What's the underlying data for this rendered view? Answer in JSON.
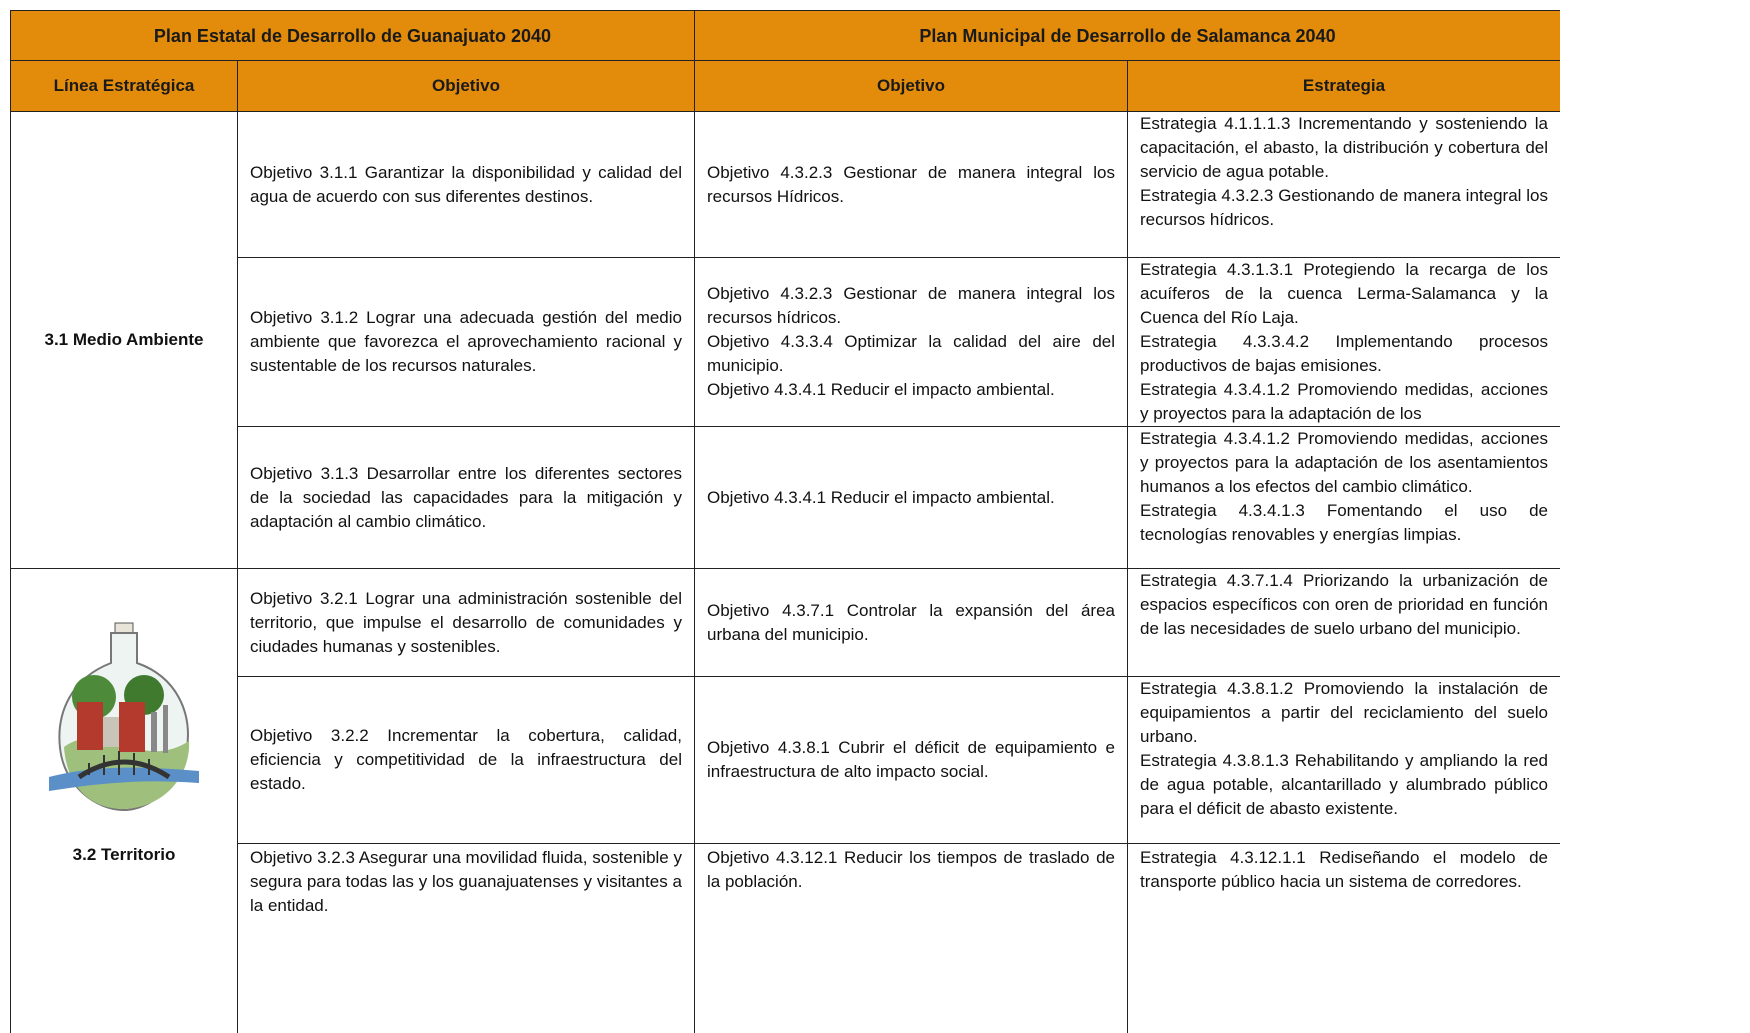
{
  "header": {
    "left": "Plan Estatal de Desarrollo de Guanajuato 2040",
    "right": "Plan Municipal de Desarrollo de Salamanca 2040"
  },
  "columns": [
    "Línea Estratégica",
    "Objetivo",
    "Objetivo",
    "Estrategia"
  ],
  "groups": [
    {
      "linea": "3.1 Medio Ambiente",
      "rows": [
        {
          "estatal": [
            "Objetivo 3.1.1 Garantizar la disponibilidad y calidad del agua de acuerdo con sus diferentes destinos."
          ],
          "municipal": [
            "Objetivo 4.3.2.3 Gestionar de manera integral los recursos Hídricos."
          ],
          "estrategia": [
            "Estrategia 4.1.1.1.3 Incrementando y sosteniendo la capacitación, el abasto, la distribución y cobertura del servicio de agua potable.",
            "Estrategia 4.3.2.3 Gestionando de manera integral los recursos hídricos."
          ]
        },
        {
          "estatal": [
            "Objetivo 3.1.2 Lograr una adecuada gestión del medio ambiente que favorezca el aprovechamiento racional y sustentable de los recursos naturales."
          ],
          "municipal": [
            "Objetivo 4.3.2.3 Gestionar de manera integral los recursos hídricos.",
            "Objetivo 4.3.3.4 Optimizar la calidad del aire del municipio.",
            "Objetivo 4.3.4.1 Reducir el impacto ambiental."
          ],
          "estrategia": [
            "Estrategia 4.3.1.3.1 Protegiendo la recarga de los acuíferos de la cuenca Lerma-Salamanca y la Cuenca del Río Laja.",
            "Estrategia 4.3.3.4.2 Implementando procesos productivos de bajas emisiones.",
            "Estrategia 4.3.4.1.2 Promoviendo medidas, acciones y proyectos para la adaptación de los"
          ]
        },
        {
          "estatal": [
            "Objetivo 3.1.3 Desarrollar entre los diferentes sectores de la sociedad las capacidades para la mitigación y adaptación al cambio climático."
          ],
          "municipal": [
            "Objetivo 4.3.4.1 Reducir el impacto ambiental."
          ],
          "estrategia": [
            "Estrategia 4.3.4.1.2 Promoviendo medidas, acciones y proyectos para la adaptación de los asentamientos humanos a los efectos del cambio climático.",
            "Estrategia 4.3.4.1.3 Fomentando el uso de tecnologías renovables y energías limpias."
          ]
        }
      ]
    },
    {
      "linea": "3.2 Territorio",
      "rows": [
        {
          "estatal": [
            "Objetivo 3.2.1 Lograr una administración sostenible del territorio, que impulse el desarrollo de comunidades y ciudades humanas y sostenibles."
          ],
          "municipal": [
            "Objetivo 4.3.7.1 Controlar la expansión del área urbana del municipio."
          ],
          "estrategia": [
            "Estrategia 4.3.7.1.4 Priorizando la urbanización de espacios específicos con oren de prioridad en función de las necesidades de suelo urbano del municipio."
          ]
        },
        {
          "estatal": [
            "Objetivo 3.2.2 Incrementar la cobertura, calidad, eficiencia y competitividad de la infraestructura del estado."
          ],
          "municipal": [
            "Objetivo 4.3.8.1 Cubrir el déficit de equipamiento e infraestructura de alto impacto social."
          ],
          "estrategia": [
            "Estrategia 4.3.8.1.2 Promoviendo la instalación de equipamientos a partir del reciclamiento del suelo urbano.",
            "Estrategia 4.3.8.1.3 Rehabilitando y ampliando la red de agua potable, alcantarillado y alumbrado público para el déficit de abasto existente."
          ]
        },
        {
          "estatal": [
            "Objetivo 3.2.3 Asegurar una movilidad fluida, sostenible y segura para todas las y los guanajuatenses y visitantes a la entidad."
          ],
          "municipal": [
            "Objetivo 4.3.12.1 Reducir los tiempos de traslado de la población."
          ],
          "estrategia": [
            "Estrategia 4.3.12.1.1 Rediseñando el modelo de transporte público hacia un sistema de corredores."
          ]
        }
      ]
    }
  ]
}
